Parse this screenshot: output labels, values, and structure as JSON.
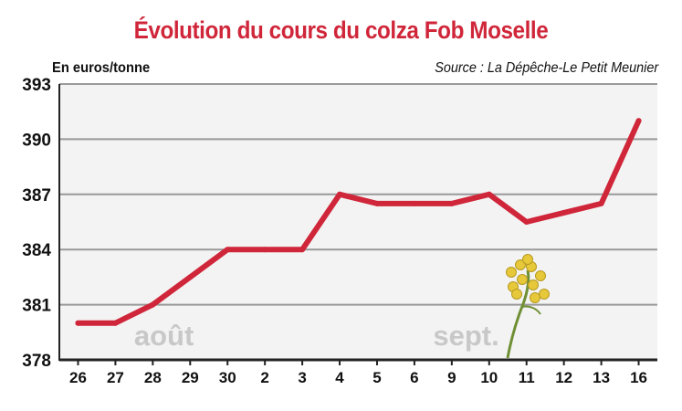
{
  "chart_data": {
    "type": "line",
    "title": "Évolution du cours du colza Fob Moselle",
    "unit_label": "En euros/tonne",
    "source": "Source : La Dépêche-Le Petit Meunier",
    "categories": [
      "26",
      "27",
      "28",
      "29",
      "30",
      "2",
      "3",
      "4",
      "5",
      "6",
      "9",
      "10",
      "11",
      "12",
      "13",
      "16"
    ],
    "values": [
      380,
      380,
      381,
      382.5,
      384,
      384,
      384,
      387,
      386.5,
      386.5,
      386.5,
      387,
      385.5,
      386,
      386.5,
      391
    ],
    "y_ticks": [
      378,
      381,
      384,
      387,
      390,
      393
    ],
    "ylim": [
      378,
      393
    ],
    "grid": true,
    "month_labels": [
      {
        "text": "août",
        "after_index": 1
      },
      {
        "text": "sept.",
        "after_index": 9
      }
    ],
    "colors": {
      "line": "#d0263a",
      "grid": "#999999",
      "title": "#d0263a",
      "month_label": "#c8c8c8",
      "bg_band": "#f3f3f3"
    },
    "decoration": "rapeseed-flower-illustration"
  }
}
